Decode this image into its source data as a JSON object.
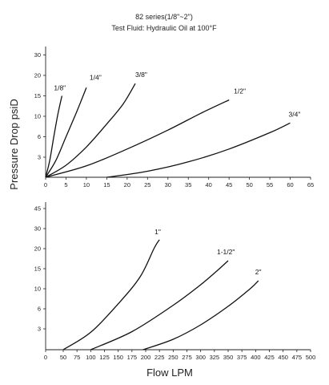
{
  "chart_data": {
    "type": "line",
    "title": "82 series(1/8\"~2\")",
    "subtitle": "Test Fluid: Hydraulic Oil at 100°F",
    "ylabel": "Pressure Drop psiD",
    "xlabel": "Flow LPM",
    "grid": false,
    "panels": [
      {
        "xlim": [
          0,
          65
        ],
        "x_ticks": [
          "0",
          "5",
          "10",
          "15",
          "20",
          "25",
          "30",
          "35",
          "40",
          "45",
          "50",
          "55",
          "60",
          "65"
        ],
        "y_ticks": [
          "3",
          "6",
          "10",
          "15",
          "20",
          "30"
        ],
        "series": [
          {
            "name": "1/8\"",
            "points": [
              [
                0,
                0
              ],
              [
                1,
                2.5
              ],
              [
                2,
                6
              ],
              [
                3,
                10.5
              ],
              [
                4,
                15
              ]
            ]
          },
          {
            "name": "1/4\"",
            "points": [
              [
                0,
                0
              ],
              [
                2.5,
                2.5
              ],
              [
                5,
                6
              ],
              [
                7.5,
                10.8
              ],
              [
                10,
                17
              ]
            ]
          },
          {
            "name": "3/8\"",
            "points": [
              [
                0,
                0
              ],
              [
                5,
                1.8
              ],
              [
                10,
                4.5
              ],
              [
                15,
                8.5
              ],
              [
                19,
                13
              ],
              [
                22,
                18
              ]
            ]
          },
          {
            "name": "1/2\"",
            "points": [
              [
                0,
                0
              ],
              [
                10,
                1.7
              ],
              [
                20,
                4.2
              ],
              [
                30,
                7.3
              ],
              [
                38,
                10.7
              ],
              [
                45,
                14
              ]
            ]
          },
          {
            "name": "3/4\"",
            "points": [
              [
                15,
                0
              ],
              [
                25,
                0.9
              ],
              [
                35,
                2.3
              ],
              [
                45,
                4.2
              ],
              [
                55,
                6.8
              ],
              [
                60,
                8.7
              ]
            ]
          }
        ]
      },
      {
        "xlim": [
          0,
          500
        ],
        "x_ticks": [
          "0",
          "50",
          "75",
          "100",
          "125",
          "150",
          "175",
          "200",
          "225",
          "250",
          "275",
          "300",
          "325",
          "350",
          "375",
          "400",
          "425",
          "450",
          "475",
          "500"
        ],
        "y_ticks": [
          "3",
          "6",
          "10",
          "15",
          "20",
          "30",
          "45"
        ],
        "series": [
          {
            "name": "1\"",
            "points": [
              [
                50,
                0
              ],
              [
                100,
                2.5
              ],
              [
                150,
                7
              ],
              [
                190,
                13
              ],
              [
                215,
                20
              ],
              [
                225,
                24.5
              ]
            ]
          },
          {
            "name": "1-1/2\"",
            "points": [
              [
                100,
                0
              ],
              [
                175,
                2.6
              ],
              [
                250,
                6.7
              ],
              [
                300,
                11
              ],
              [
                330,
                14.5
              ],
              [
                350,
                17
              ]
            ]
          },
          {
            "name": "2\"",
            "points": [
              [
                195,
                0
              ],
              [
                250,
                1.5
              ],
              [
                300,
                3.6
              ],
              [
                350,
                6.5
              ],
              [
                390,
                10
              ],
              [
                405,
                12
              ]
            ]
          }
        ]
      }
    ]
  }
}
